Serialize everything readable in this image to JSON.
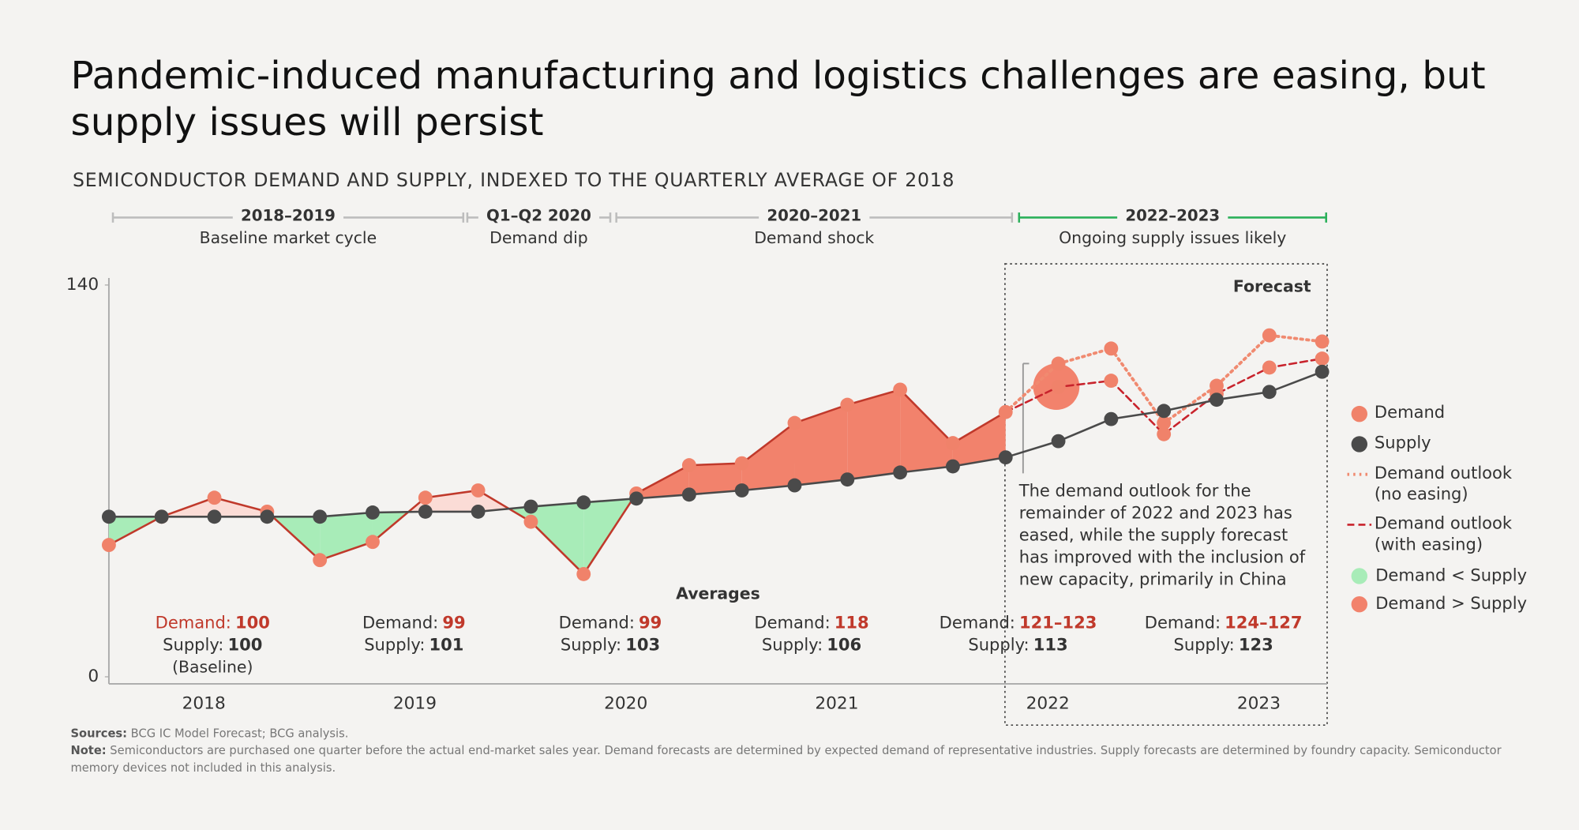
{
  "chart_data": {
    "type": "line",
    "title": "Pandemic-induced manufacturing and logistics challenges are easing, but supply issues will persist",
    "subtitle": "SEMICONDUCTOR DEMAND AND SUPPLY, INDEXED TO THE QUARTERLY AVERAGE OF 2018",
    "periods": [
      {
        "title": "2018–2019",
        "subtitle": "Baseline market cycle",
        "color": "#bdbdbd"
      },
      {
        "title": "Q1–Q2 2020",
        "subtitle": "Demand dip",
        "color": "#bdbdbd"
      },
      {
        "title": "2020–2021",
        "subtitle": "Demand shock",
        "color": "#bdbdbd"
      },
      {
        "title": "2022–2023",
        "subtitle": "Ongoing supply issues likely",
        "color": "#2bb05a"
      }
    ],
    "categories": [
      null,
      null,
      "2018",
      null,
      null,
      null,
      "2019",
      null,
      null,
      null,
      "2020",
      null,
      null,
      null,
      "2021",
      null,
      null,
      null,
      "2022",
      null,
      null,
      null,
      "2023",
      null
    ],
    "series": [
      {
        "name": "Demand",
        "color": "#f0826a",
        "line_color": "#c0392b",
        "values": [
          47.1,
          57.2,
          64,
          59,
          41.7,
          48.2,
          64,
          66.6,
          55.4,
          36.7,
          65.5,
          75.6,
          76.3,
          90.7,
          97.2,
          102.6,
          83.5,
          94.6,
          null,
          null,
          null,
          null,
          null,
          null
        ]
      },
      {
        "name": "Supply",
        "color": "#4a4a4a",
        "values": [
          57.2,
          57.2,
          57.2,
          57.2,
          57.2,
          58.7,
          59,
          59,
          60.8,
          62.3,
          63.7,
          65.1,
          66.6,
          68.4,
          70.5,
          73,
          75.2,
          78.4,
          84.2,
          92.1,
          95,
          99,
          101.8,
          109
        ]
      },
      {
        "name": "Demand outlook (no easing)",
        "color": "#f08a70",
        "dash": "dotted",
        "values": [
          null,
          null,
          null,
          null,
          null,
          null,
          null,
          null,
          null,
          null,
          null,
          null,
          null,
          null,
          null,
          null,
          null,
          94.6,
          111.9,
          117.3,
          90.7,
          104,
          122,
          119.8
        ]
      },
      {
        "name": "Demand outlook (with easing)",
        "color": "#c8232c",
        "dash": "dashed",
        "values": [
          null,
          null,
          null,
          null,
          null,
          null,
          null,
          null,
          null,
          null,
          null,
          null,
          null,
          null,
          null,
          null,
          null,
          94.6,
          103.6,
          105.8,
          86.7,
          101.1,
          110.5,
          113.7
        ]
      }
    ],
    "areas": [
      {
        "name": "Demand < Supply",
        "color": "#a8ecb8"
      },
      {
        "name": "Demand > Supply",
        "color": "#f2826c"
      }
    ],
    "ylim": [
      0,
      140
    ],
    "yticks": [
      0,
      140
    ],
    "grid": false,
    "legend": "right",
    "forecast_label": "Forecast",
    "annotation": [
      "The demand outlook for the",
      "remainder of 2022 and 2023 has",
      "eased, while the supply forecast",
      "has improved with the inclusion of",
      "new capacity, primarily in China"
    ],
    "averages": {
      "title": "Averages",
      "demand_label": "Demand:",
      "supply_label": "Supply:",
      "entries": [
        {
          "demand": 100,
          "supply": 100,
          "note": "(Baseline)"
        },
        {
          "demand": 99,
          "supply": 101
        },
        {
          "demand": 99,
          "supply": 103
        },
        {
          "demand": 118,
          "supply": 106
        },
        {
          "demand": "121–123",
          "supply": 113
        },
        {
          "demand": "124–127",
          "supply": 123
        }
      ]
    },
    "sources": {
      "label": "Sources:",
      "text": "BCG IC Model Forecast; BCG analysis."
    },
    "note": {
      "label": "Note:",
      "text": "Semiconductors are purchased one quarter before the actual end-market sales year. Demand forecasts are determined by expected demand of representative industries. Supply forecasts are determined by foundry capacity. Semiconductor memory devices not included in this analysis."
    }
  }
}
